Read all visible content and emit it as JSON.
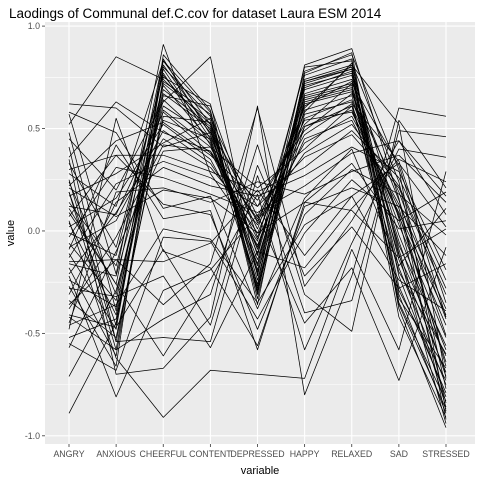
{
  "chart_data": {
    "type": "line",
    "title": "Laodings of Communal def.C.cov for dataset Laura ESM 2014",
    "xlabel": "variable",
    "ylabel": "value",
    "categories": [
      "ANGRY",
      "ANXIOUS",
      "CHEERFUL",
      "CONTENT",
      "DEPRESSED",
      "HAPPY",
      "RELAXED",
      "SAD",
      "STRESSED"
    ],
    "category_tick_labels": [
      "ANGRY",
      "ANXIOUS",
      "CHEERFUL",
      "CONTENT",
      "DEPRESSED",
      "HAPPY",
      "RELAXED",
      "SAD",
      "STRESSED"
    ],
    "ylim": [
      -1.04,
      1.02
    ],
    "yticks": [
      -1.0,
      -0.5,
      0.0,
      0.5,
      1.0
    ],
    "ytick_labels": [
      "-1.0",
      "-0.5",
      "0.0",
      "0.5",
      "1.0"
    ],
    "grid": true,
    "background": "#ebebeb",
    "grid_major_color": "#ffffff",
    "line_color": "#000000",
    "series": [
      {
        "values": [
          0.62,
          0.6,
          0.41,
          0.48,
          0.12,
          0.52,
          0.72,
          0.32,
          -0.42
        ]
      },
      {
        "values": [
          0.57,
          -0.21,
          0.91,
          0.28,
          -0.05,
          0.78,
          0.86,
          0.3,
          -0.88
        ]
      },
      {
        "values": [
          0.52,
          0.85,
          0.74,
          0.52,
          0.04,
          0.6,
          0.81,
          0.52,
          -0.72
        ]
      },
      {
        "values": [
          0.48,
          -0.39,
          0.83,
          0.58,
          -0.12,
          0.7,
          0.78,
          0.06,
          -0.84
        ]
      },
      {
        "values": [
          0.45,
          0.2,
          0.63,
          0.85,
          -0.22,
          0.81,
          0.89,
          0.16,
          -0.92
        ]
      },
      {
        "values": [
          0.41,
          -0.54,
          0.59,
          0.41,
          0.21,
          0.4,
          0.61,
          0.08,
          -0.64
        ]
      },
      {
        "values": [
          0.36,
          0.63,
          0.48,
          0.39,
          -0.08,
          0.58,
          0.82,
          0.24,
          -0.77
        ]
      },
      {
        "values": [
          0.33,
          -0.08,
          0.76,
          0.48,
          0.01,
          0.65,
          0.71,
          -0.02,
          -0.58
        ]
      },
      {
        "values": [
          0.28,
          0.12,
          0.83,
          0.52,
          -0.19,
          0.74,
          0.81,
          -0.11,
          -0.94
        ]
      },
      {
        "values": [
          0.24,
          -0.31,
          0.66,
          0.61,
          -0.03,
          0.61,
          0.73,
          0.15,
          -0.51
        ]
      },
      {
        "values": [
          0.22,
          0.44,
          0.53,
          0.37,
          0.15,
          0.49,
          0.67,
          0.19,
          -0.43
        ]
      },
      {
        "values": [
          0.19,
          -0.46,
          0.79,
          0.45,
          -0.17,
          0.73,
          0.79,
          -0.09,
          -0.86
        ]
      },
      {
        "values": [
          0.17,
          0.28,
          0.43,
          0.55,
          0.07,
          0.54,
          0.58,
          0.11,
          -0.66
        ]
      },
      {
        "values": [
          0.14,
          -0.17,
          0.71,
          0.44,
          -0.28,
          0.63,
          0.69,
          -0.05,
          -0.71
        ]
      },
      {
        "values": [
          0.12,
          0.08,
          0.58,
          0.38,
          0.06,
          0.47,
          0.62,
          0.34,
          -0.35
        ]
      },
      {
        "values": [
          0.09,
          -0.26,
          0.84,
          0.47,
          -0.11,
          0.8,
          0.83,
          -0.22,
          -0.81
        ]
      },
      {
        "values": [
          0.07,
          0.37,
          0.37,
          0.29,
          0.19,
          0.31,
          0.49,
          0.26,
          -0.24
        ]
      },
      {
        "values": [
          0.04,
          -0.41,
          0.69,
          0.51,
          -0.21,
          0.67,
          0.74,
          -0.14,
          -0.69
        ]
      },
      {
        "values": [
          0.02,
          0.16,
          0.52,
          0.35,
          -0.07,
          0.55,
          0.64,
          0.03,
          -0.52
        ]
      },
      {
        "values": [
          -0.01,
          -0.12,
          0.77,
          0.42,
          -0.16,
          0.71,
          0.77,
          -0.18,
          -0.75
        ]
      },
      {
        "values": [
          -0.03,
          0.31,
          0.26,
          0.18,
          0.09,
          0.22,
          0.38,
          0.44,
          0.08
        ]
      },
      {
        "values": [
          -0.06,
          -0.34,
          0.72,
          0.54,
          -0.24,
          0.69,
          0.76,
          -0.27,
          -0.79
        ]
      },
      {
        "values": [
          -0.08,
          0.05,
          0.49,
          0.33,
          -0.01,
          0.51,
          0.59,
          0.07,
          -0.46
        ]
      },
      {
        "values": [
          -0.11,
          -0.48,
          0.81,
          0.49,
          -0.26,
          0.76,
          0.84,
          -0.31,
          -0.89
        ]
      },
      {
        "values": [
          -0.13,
          0.23,
          0.34,
          0.26,
          0.12,
          0.36,
          0.47,
          0.21,
          -0.31
        ]
      },
      {
        "values": [
          -0.16,
          -0.22,
          0.61,
          0.46,
          -0.09,
          0.59,
          0.66,
          -0.12,
          -0.61
        ]
      },
      {
        "values": [
          -0.18,
          -0.61,
          0.73,
          0.57,
          -0.33,
          0.66,
          0.72,
          -0.35,
          -0.83
        ]
      },
      {
        "values": [
          -0.21,
          0.09,
          0.45,
          0.31,
          0.03,
          0.43,
          0.56,
          0.13,
          -0.38
        ]
      },
      {
        "values": [
          -0.24,
          -0.37,
          0.64,
          0.43,
          -0.14,
          0.62,
          0.68,
          -0.07,
          -0.56
        ]
      },
      {
        "values": [
          -0.27,
          -0.66,
          0.86,
          0.59,
          -0.36,
          0.77,
          0.87,
          -0.38,
          -0.96
        ]
      },
      {
        "values": [
          -0.31,
          0.14,
          0.31,
          0.22,
          0.17,
          0.27,
          0.41,
          0.29,
          -0.19
        ]
      },
      {
        "values": [
          -0.34,
          -0.52,
          0.56,
          0.53,
          -0.29,
          0.57,
          0.63,
          -0.29,
          -0.73
        ]
      },
      {
        "values": [
          -0.38,
          -0.03,
          0.42,
          0.39,
          0.05,
          0.38,
          0.52,
          0.22,
          -0.28
        ]
      },
      {
        "values": [
          -0.42,
          -0.58,
          0.75,
          0.62,
          -0.31,
          0.72,
          0.79,
          -0.42,
          -0.91
        ]
      },
      {
        "values": [
          -0.45,
          0.19,
          0.21,
          0.14,
          0.24,
          0.18,
          0.29,
          0.37,
          0.14
        ]
      },
      {
        "values": [
          -0.52,
          -0.43,
          0.67,
          0.5,
          -0.27,
          0.64,
          0.7,
          -0.33,
          -0.67
        ]
      },
      {
        "values": [
          -0.57,
          -0.1,
          0.39,
          0.41,
          -0.04,
          0.45,
          0.54,
          0.09,
          -0.41
        ]
      },
      {
        "values": [
          -0.71,
          -0.29,
          0.54,
          0.45,
          -0.2,
          0.51,
          0.61,
          -0.2,
          -0.6
        ]
      },
      {
        "values": [
          -0.89,
          -0.45,
          0.8,
          0.56,
          -0.3,
          0.73,
          0.8,
          -0.36,
          -0.87
        ]
      },
      {
        "values": [
          0.35,
          -0.7,
          -0.67,
          -0.42,
          0.61,
          -0.8,
          -0.22,
          0.6,
          0.56
        ]
      },
      {
        "values": [
          0.25,
          -0.54,
          -0.52,
          -0.54,
          0.27,
          -0.4,
          -0.34,
          0.49,
          0.46
        ]
      },
      {
        "values": [
          0.19,
          -0.58,
          -0.43,
          -0.31,
          0.42,
          -0.31,
          -0.49,
          0.54,
          0.21
        ]
      },
      {
        "values": [
          0.11,
          -0.26,
          -0.61,
          -0.24,
          0.18,
          -0.58,
          -0.06,
          0.4,
          0.36
        ]
      },
      {
        "values": [
          0.05,
          -0.62,
          -0.91,
          -0.68,
          -0.7,
          -0.72,
          -0.09,
          -0.58,
          0.29
        ]
      },
      {
        "values": [
          -0.15,
          -0.14,
          -0.36,
          -0.16,
          0.6,
          -0.27,
          0.05,
          0.44,
          0.17
        ]
      },
      {
        "values": [
          -0.22,
          -0.81,
          -0.29,
          -0.19,
          0.08,
          -0.45,
          -0.18,
          -0.73,
          -0.08
        ]
      },
      {
        "values": [
          -0.28,
          -0.32,
          -0.22,
          -0.57,
          -0.1,
          -0.18,
          0.11,
          0.35,
          0.24
        ]
      },
      {
        "values": [
          -0.36,
          -0.14,
          -0.15,
          -0.06,
          0.2,
          -0.12,
          0.17,
          0.33,
          0.02
        ]
      },
      {
        "values": [
          -0.41,
          -0.47,
          -0.09,
          -0.46,
          0.32,
          -0.22,
          0.02,
          -0.28,
          -0.16
        ]
      },
      {
        "values": [
          -0.48,
          0.55,
          -0.1,
          -0.18,
          -0.56,
          0.12,
          0.21,
          0.12,
          -0.12
        ]
      },
      {
        "values": [
          -0.55,
          -0.68,
          -0.03,
          -0.05,
          -0.43,
          -0.01,
          0.25,
          0.05,
          0.19
        ]
      },
      {
        "values": [
          0.58,
          0.48,
          0.11,
          0.17,
          -0.38,
          0.16,
          0.4,
          -0.17,
          0.11
        ]
      },
      {
        "values": [
          -0.09,
          0.42,
          0.06,
          0.1,
          -0.58,
          0.14,
          0.33,
          0.01,
          0.05
        ]
      },
      {
        "values": [
          0.3,
          0.37,
          0.13,
          0.08,
          -0.48,
          0.08,
          0.3,
          0.18,
          -0.02
        ]
      },
      {
        "values": [
          -0.46,
          -0.36,
          0.01,
          -0.04,
          -0.35,
          0.03,
          0.17,
          -0.24,
          -0.39
        ]
      },
      {
        "values": [
          0.21,
          0.07,
          0.2,
          0.16,
          -0.01,
          0.14,
          0.1,
          -0.13,
          0.01
        ]
      }
    ]
  }
}
